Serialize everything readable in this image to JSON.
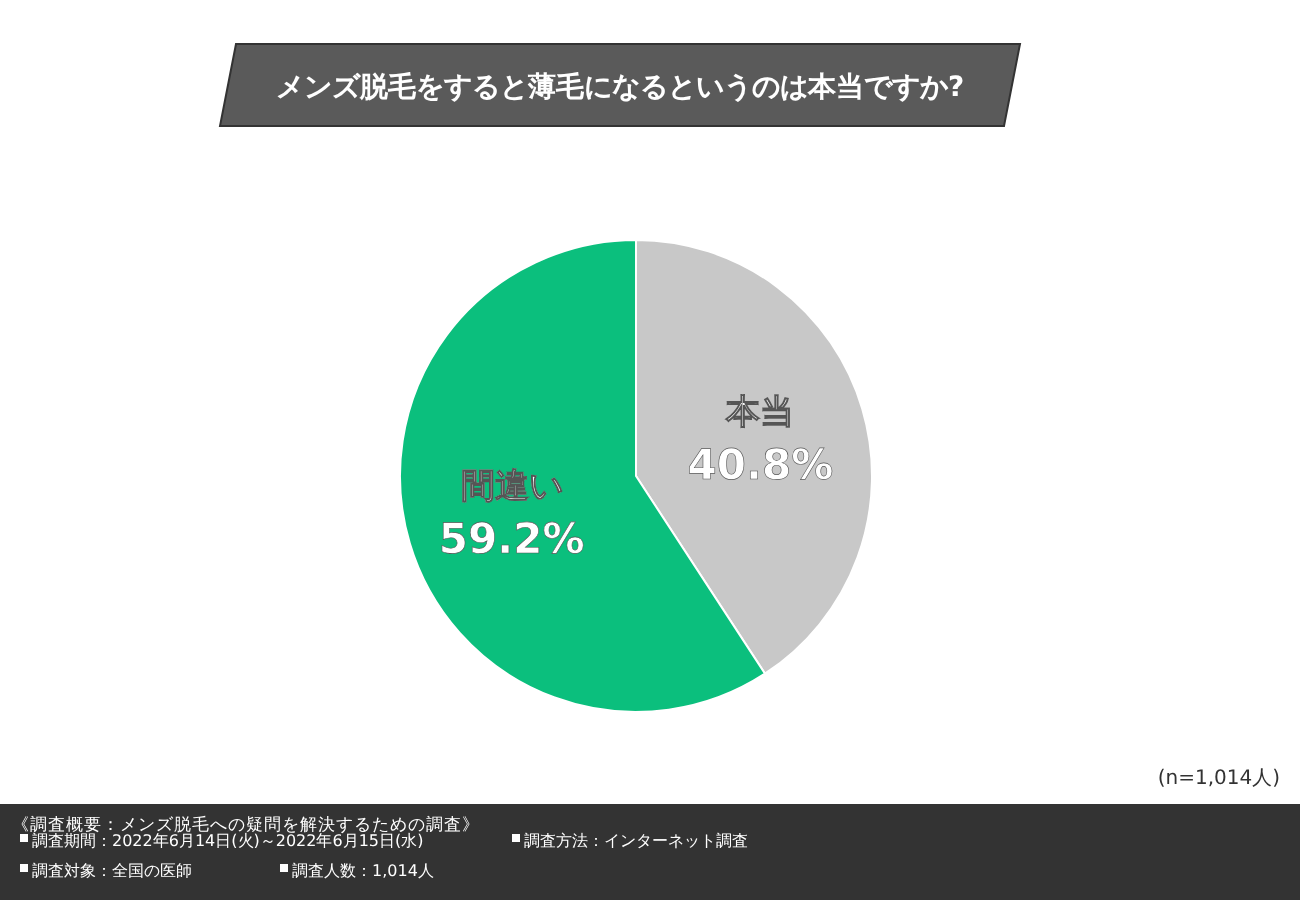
{
  "chart_data": {
    "type": "pie",
    "title": "メンズ脱毛をすると薄毛になるというのは本当ですか?",
    "categories": [
      "本当",
      "間違い"
    ],
    "values": [
      40.8,
      59.2
    ],
    "colors": [
      "#c8c8c8",
      "#0bbf7d"
    ],
    "value_labels": [
      "40.8%",
      "59.2%"
    ],
    "annotations": [
      "(n=1,014人)",
      "《調査概要：メンズ脱毛への疑問を解決するための調査》",
      "調査期間：2022年6月14日(火)～2022年6月15日(水)",
      "調査方法：インターネット調査",
      "調査対象：全国の医師",
      "調査人数：1,014人"
    ]
  }
}
